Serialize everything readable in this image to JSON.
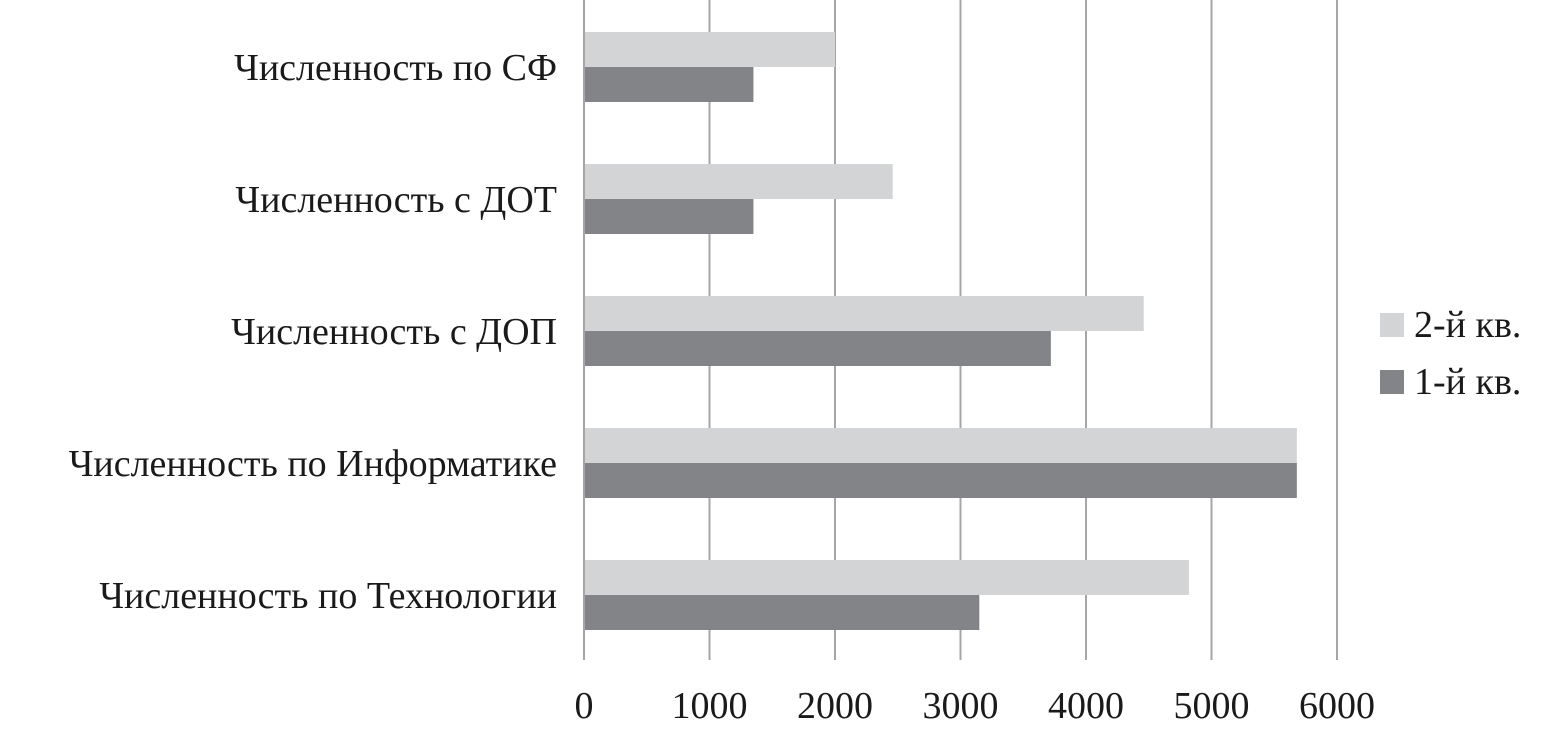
{
  "chart_data": {
    "type": "bar",
    "orientation": "horizontal",
    "title": "",
    "xlabel": "",
    "ylabel": "",
    "xlim": [
      0,
      6000
    ],
    "xticks": [
      0,
      1000,
      2000,
      3000,
      4000,
      5000,
      6000
    ],
    "tick_labels": [
      "0",
      "1000",
      "2000",
      "3000",
      "4000",
      "5000",
      "6000"
    ],
    "grid": "vertical",
    "legend_position": "right",
    "categories": [
      "Численность по СФ",
      "Численность с ДОТ",
      "Численность с ДОП",
      "Численность по Информатике",
      "Численность по Технологии"
    ],
    "series": [
      {
        "name": "2-й кв.",
        "color": "#d3d4d5",
        "values": [
          2000,
          2460,
          4460,
          5680,
          4820
        ]
      },
      {
        "name": "1-й кв.",
        "color": "#838487",
        "values": [
          1350,
          1350,
          3720,
          5680,
          3150
        ]
      }
    ]
  }
}
